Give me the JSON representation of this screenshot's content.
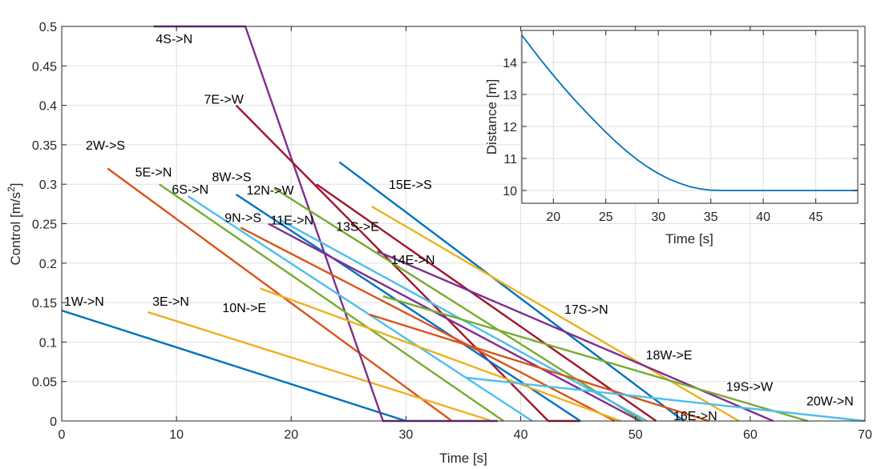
{
  "chart_data": [
    {
      "type": "line",
      "xlabel": "Time [s]",
      "ylabel": "Control [m/s",
      "ylabel_sup": "2",
      "ylabel_end": "]",
      "xlim": [
        0,
        70
      ],
      "ylim": [
        0,
        0.5
      ],
      "xticks": [
        0,
        10,
        20,
        30,
        40,
        50,
        60,
        70
      ],
      "yticks": [
        0,
        0.05,
        0.1,
        0.15,
        0.2,
        0.25,
        0.3,
        0.35,
        0.4,
        0.45,
        0.5
      ],
      "xtick_labels": [
        "0",
        "10",
        "20",
        "30",
        "40",
        "50",
        "60",
        "70"
      ],
      "ytick_labels": [
        "0",
        "0.05",
        "0.1",
        "0.15",
        "0.2",
        "0.25",
        "0.3",
        "0.35",
        "0.4",
        "0.45",
        "0.5"
      ],
      "grid": true,
      "series": [
        {
          "name": "1W->N",
          "color": "#0072BD",
          "x": [
            0,
            30
          ],
          "y": [
            0.14,
            0
          ],
          "label_at": [
            0.2,
            0.152
          ]
        },
        {
          "name": "2W->S",
          "color": "#D95319",
          "x": [
            4,
            34
          ],
          "y": [
            0.32,
            0
          ],
          "label_at": [
            2.1,
            0.35
          ]
        },
        {
          "name": "3E->N",
          "color": "#EDB120",
          "x": [
            7.5,
            37.5
          ],
          "y": [
            0.138,
            0
          ],
          "label_at": [
            7.9,
            0.152
          ]
        },
        {
          "name": "4S->N",
          "color": "#7E2F8E",
          "x": [
            8,
            16,
            28,
            38
          ],
          "y": [
            0.5,
            0.5,
            0,
            0
          ],
          "label_at": [
            8.2,
            0.485
          ]
        },
        {
          "name": "5E->N",
          "color": "#77AC30",
          "x": [
            8.5,
            38.5
          ],
          "y": [
            0.3,
            0
          ],
          "label_at": [
            6.4,
            0.316
          ]
        },
        {
          "name": "6S->N",
          "color": "#4DBEEE",
          "x": [
            11,
            41
          ],
          "y": [
            0.285,
            0
          ],
          "label_at": [
            9.6,
            0.294
          ]
        },
        {
          "name": "7E->W",
          "color": "#A2142F",
          "x": [
            15.2,
            42.4,
            45.2
          ],
          "y": [
            0.4,
            0,
            0
          ],
          "label_at": [
            12.4,
            0.408
          ]
        },
        {
          "name": "8W->S",
          "color": "#0072BD",
          "x": [
            15.2,
            45.2
          ],
          "y": [
            0.287,
            0
          ],
          "label_at": [
            13.1,
            0.31
          ]
        },
        {
          "name": "9N->S",
          "color": "#D95319",
          "x": [
            15.6,
            48.2
          ],
          "y": [
            0.245,
            0
          ],
          "label_at": [
            14.2,
            0.258
          ]
        },
        {
          "name": "10N->E",
          "color": "#EDB120",
          "x": [
            17.3,
            48.7
          ],
          "y": [
            0.168,
            0
          ],
          "label_at": [
            14,
            0.144
          ]
        },
        {
          "name": "11E->N",
          "color": "#7E2F8E",
          "x": [
            18,
            50.4
          ],
          "y": [
            0.25,
            0
          ],
          "label_at": [
            18.2,
            0.255
          ]
        },
        {
          "name": "12N->W",
          "color": "#77AC30",
          "x": [
            18.5,
            50.6
          ],
          "y": [
            0.295,
            0
          ],
          "label_at": [
            16.1,
            0.293
          ]
        },
        {
          "name": "13S->E",
          "color": "#4DBEEE",
          "x": [
            19,
            51
          ],
          "y": [
            0.255,
            0
          ],
          "label_at": [
            23.9,
            0.247
          ]
        },
        {
          "name": "14E->N",
          "color": "#A2142F",
          "x": [
            22.2,
            51.8
          ],
          "y": [
            0.3,
            0
          ],
          "label_at": [
            28.7,
            0.205
          ]
        },
        {
          "name": "15E->S",
          "color": "#0072BD",
          "x": [
            24.2,
            54.2
          ],
          "y": [
            0.328,
            0
          ],
          "label_at": [
            28.5,
            0.3
          ]
        },
        {
          "name": "16E->N",
          "color": "#D95319",
          "x": [
            26.8,
            56.4
          ],
          "y": [
            0.135,
            0
          ],
          "label_at": [
            53.3,
            0.007
          ]
        },
        {
          "name": "17S->N",
          "color": "#EDB120",
          "x": [
            27,
            59
          ],
          "y": [
            0.272,
            0
          ],
          "label_at": [
            43.8,
            0.142
          ]
        },
        {
          "name": "18W->E",
          "color": "#7E2F8E",
          "x": [
            27.5,
            62
          ],
          "y": [
            0.215,
            0
          ],
          "label_at": [
            50.9,
            0.084
          ]
        },
        {
          "name": "19S->W",
          "color": "#77AC30",
          "x": [
            28,
            65
          ],
          "y": [
            0.158,
            0
          ],
          "label_at": [
            57.9,
            0.044
          ]
        },
        {
          "name": "20W->N",
          "color": "#4DBEEE",
          "x": [
            35.2,
            70
          ],
          "y": [
            0.055,
            0
          ],
          "label_at": [
            64.9,
            0.026
          ]
        }
      ]
    },
    {
      "type": "line",
      "xlabel": "Time [s]",
      "ylabel": "Distance [m]",
      "xlim": [
        17,
        49
      ],
      "ylim": [
        9.6,
        15
      ],
      "xticks": [
        20,
        25,
        30,
        35,
        40,
        45
      ],
      "yticks": [
        10,
        11,
        12,
        13,
        14
      ],
      "xtick_labels": [
        "20",
        "25",
        "30",
        "35",
        "40",
        "45"
      ],
      "ytick_labels": [
        "10",
        "11",
        "12",
        "13",
        "14"
      ],
      "grid": true,
      "series": [
        {
          "color": "#0072BD",
          "x": [
            17,
            18,
            19,
            20,
            21,
            22,
            23,
            24,
            25,
            26,
            27,
            28,
            29,
            30,
            31,
            32,
            33,
            34,
            35,
            36,
            37,
            38,
            40,
            42,
            44,
            46,
            48,
            49
          ],
          "y": [
            14.85,
            14.42,
            14.0,
            13.6,
            13.21,
            12.84,
            12.49,
            12.15,
            11.82,
            11.51,
            11.22,
            10.96,
            10.73,
            10.53,
            10.36,
            10.23,
            10.12,
            10.05,
            10.01,
            10.0,
            10.0,
            10.0,
            10.0,
            10.0,
            10.0,
            10.0,
            10.0,
            10.0
          ]
        }
      ]
    }
  ]
}
